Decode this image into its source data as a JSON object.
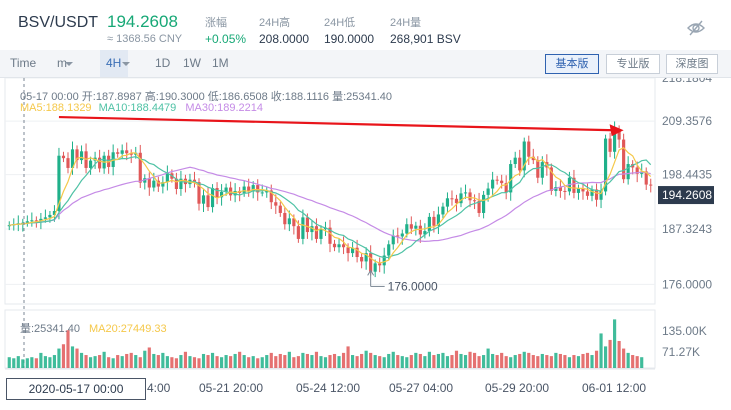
{
  "header": {
    "pair": "BSV/USDT",
    "last_price": "194.2608",
    "cny_price": "≈ 1368.56 CNY",
    "stats": [
      {
        "label": "涨幅",
        "value": "+0.05%",
        "tone": "up"
      },
      {
        "label": "24H高",
        "value": "208.0000",
        "tone": "normal"
      },
      {
        "label": "24H低",
        "value": "190.0000",
        "tone": "normal"
      },
      {
        "label": "24H量",
        "value": "268,901 BSV",
        "tone": "normal"
      }
    ],
    "hide_icon": "eye-off-icon"
  },
  "toolbar": {
    "time_label": "Time",
    "minute_dropdown": "m",
    "selected_interval": "4H",
    "intervals": [
      "1D",
      "1W",
      "1M"
    ],
    "view_buttons": [
      "基本版",
      "专业版",
      "深度图"
    ],
    "active_view": "基本版"
  },
  "chart": {
    "ohlc_line": "05-17 00:00  开:187.8987  高:190.3000  低:186.6508  收:188.1116  量:25341.40",
    "ma_labels": [
      {
        "text": "MA5:188.1329",
        "color": "#f5c84a"
      },
      {
        "text": "MA10:188.4479",
        "color": "#4fc2a5"
      },
      {
        "text": "MA30:189.2214",
        "color": "#c58be6"
      }
    ],
    "price_ticks": [
      "218.1804",
      "209.3576",
      "198.4435",
      "194.2608",
      "187.3243",
      "176.0000"
    ],
    "low_marker": "176.0000",
    "volume_line": {
      "vol": "量:25341.40",
      "ma20": "MA20:27449.33"
    },
    "volume_ticks": [
      "135.00K",
      "71.27K"
    ],
    "crosshair_date": "2020-05-17 00:00",
    "time_ticks": [
      "4:00",
      "05-21 20:00",
      "05-24 12:00",
      "05-27 04:00",
      "05-29 20:00",
      "06-01 12:00"
    ],
    "colors": {
      "up": "#1fb08a",
      "down": "#e05858",
      "trend_arrow": "#e8141a",
      "ma5": "#f5c84a",
      "ma10": "#4fc2a5",
      "ma30": "#c58be6"
    }
  },
  "chart_data": {
    "type": "candlestick",
    "x_start": "2020-05-17 00:00",
    "interval": "4H",
    "ylim": [
      172.0,
      218.1804
    ],
    "closes": [
      188.1,
      188.3,
      188.5,
      188.6,
      188.9,
      189.1,
      189.0,
      189.4,
      189.7,
      190.2,
      191.0,
      202.3,
      201.8,
      199.8,
      203.6,
      201.4,
      203.2,
      199.8,
      201.3,
      201.9,
      199.7,
      202.3,
      200.0,
      203.0,
      202.7,
      203.4,
      202.8,
      202.5,
      202.9,
      196.8,
      197.7,
      195.8,
      197.2,
      196.0,
      196.9,
      198.7,
      197.6,
      195.5,
      197.6,
      196.5,
      197.4,
      196.9,
      192.5,
      194.2,
      191.8,
      195.7,
      193.8,
      194.9,
      195.8,
      194.2,
      195.1,
      194.7,
      196.0,
      195.0,
      196.3,
      194.8,
      194.8,
      195.2,
      192.8,
      192.1,
      190.6,
      188.3,
      189.5,
      187.9,
      185.3,
      189.7,
      186.7,
      187.9,
      185.3,
      187.3,
      187.6,
      184.3,
      183.6,
      184.2,
      183.6,
      182.4,
      183.5,
      181.6,
      180.7,
      182.4,
      178.6,
      180.3,
      179.9,
      181.9,
      184.2,
      186.0,
      185.8,
      186.4,
      188.3,
      187.4,
      188.0,
      186.2,
      186.9,
      189.8,
      188.0,
      190.3,
      191.9,
      193.6,
      193.5,
      192.6,
      194.6,
      194.8,
      193.2,
      193.1,
      190.6,
      194.3,
      195.6,
      197.4,
      197.2,
      196.7,
      194.8,
      200.6,
      201.9,
      199.3,
      205.2,
      202.1,
      201.4,
      197.8,
      201.0,
      199.9,
      195.1,
      195.9,
      195.1,
      195.0,
      197.8,
      194.7,
      195.6,
      195.0,
      194.1,
      195.4,
      193.3,
      195.0,
      205.8,
      203.1,
      207.7,
      205.6,
      197.5,
      200.6,
      199.9,
      198.6,
      199.1,
      196.4,
      196.2
    ],
    "volumes": [
      10,
      9,
      11,
      8,
      9,
      10,
      9,
      14,
      11,
      10,
      12,
      18,
      22,
      35,
      20,
      18,
      14,
      12,
      10,
      11,
      12,
      15,
      10,
      9,
      12,
      11,
      13,
      14,
      12,
      10,
      16,
      19,
      13,
      12,
      14,
      11,
      10,
      9,
      12,
      15,
      11,
      10,
      9,
      13,
      12,
      14,
      11,
      10,
      12,
      11,
      13,
      15,
      12,
      10,
      11,
      9,
      10,
      12,
      14,
      11,
      13,
      12,
      15,
      10,
      11,
      14,
      13,
      12,
      15,
      11,
      10,
      12,
      13,
      11,
      14,
      20,
      12,
      11,
      13,
      16,
      14,
      12,
      11,
      10,
      13,
      15,
      12,
      11,
      10,
      12,
      14,
      13,
      11,
      15,
      12,
      13,
      14,
      11,
      12,
      16,
      13,
      12,
      15,
      14,
      11,
      12,
      18,
      13,
      12,
      14,
      11,
      10,
      12,
      13,
      15,
      14,
      12,
      11,
      13,
      12,
      11,
      14,
      13,
      12,
      10,
      12,
      11,
      13,
      14,
      12,
      16,
      32,
      20,
      26,
      45,
      25,
      18,
      14,
      12,
      11,
      10
    ],
    "low_marker_price": 176.0,
    "trend_arrow": {
      "from_price": 210.2,
      "to_price": 207.5
    }
  }
}
